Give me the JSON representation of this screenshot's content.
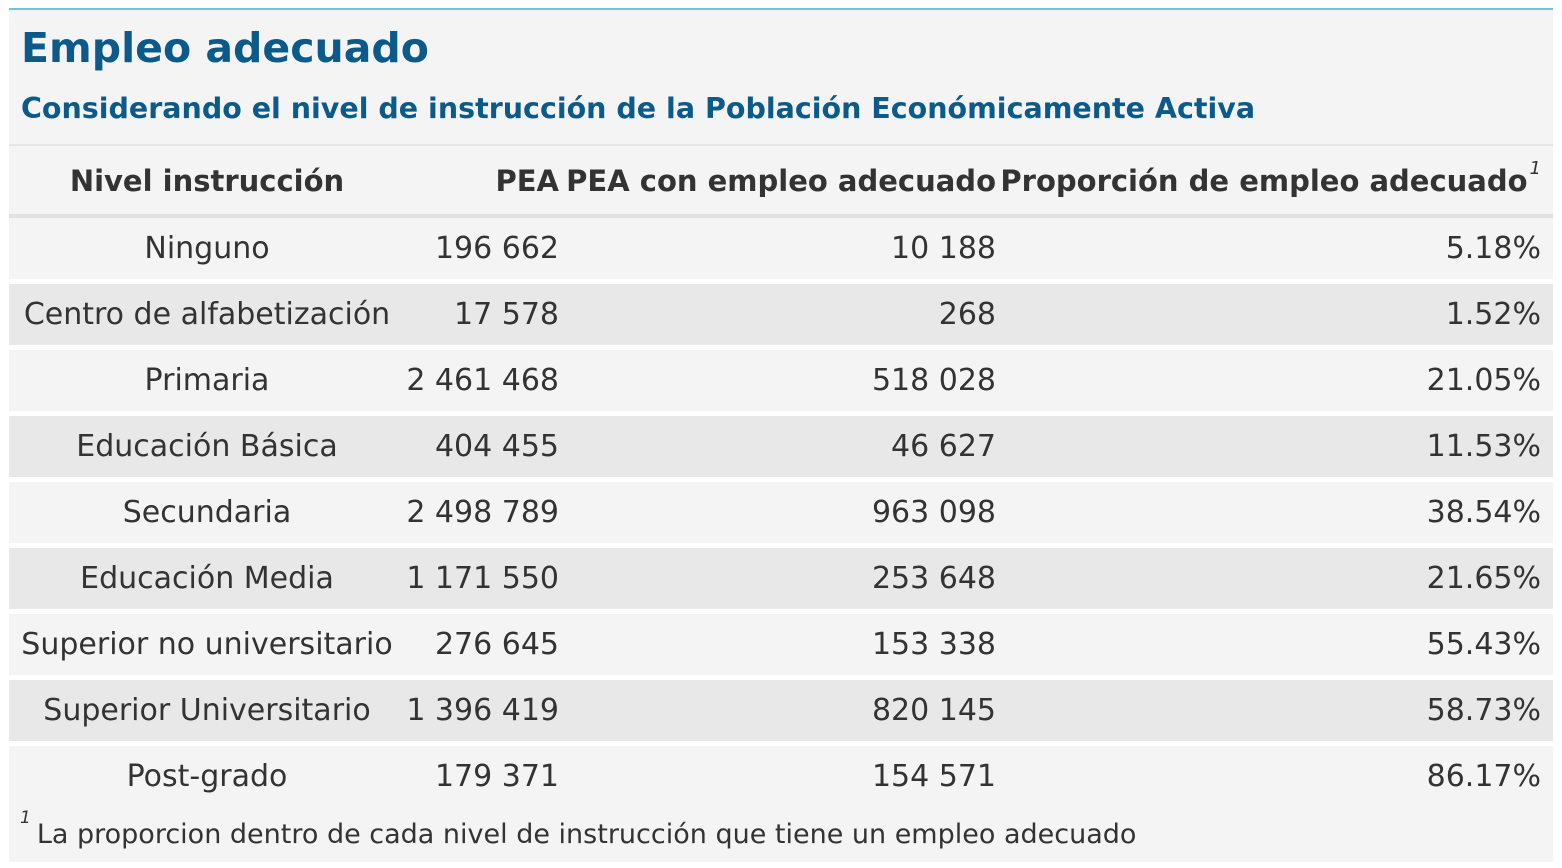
{
  "title": "Empleo adecuado",
  "subtitle": "Considerando el nivel de instrucción de la Población Económicamente Activa",
  "columns": [
    "Nivel instrucción",
    "PEA",
    "PEA con empleo adecuado",
    "Proporción de empleo adecuado"
  ],
  "footnote_marker": "1",
  "rows": [
    {
      "nivel": "Ninguno",
      "pea": "196 662",
      "adecuado": "10 188",
      "proporcion": "5.18%"
    },
    {
      "nivel": "Centro de alfabetización",
      "pea": "17 578",
      "adecuado": "268",
      "proporcion": "1.52%"
    },
    {
      "nivel": "Primaria",
      "pea": "2 461 468",
      "adecuado": "518 028",
      "proporcion": "21.05%"
    },
    {
      "nivel": "Educación Básica",
      "pea": "404 455",
      "adecuado": "46 627",
      "proporcion": "11.53%"
    },
    {
      "nivel": "Secundaria",
      "pea": "2 498 789",
      "adecuado": "963 098",
      "proporcion": "38.54%"
    },
    {
      "nivel": "Educación Media",
      "pea": "1 171 550",
      "adecuado": "253 648",
      "proporcion": "21.65%"
    },
    {
      "nivel": "Superior no universitario",
      "pea": "276 645",
      "adecuado": "153 338",
      "proporcion": "55.43%"
    },
    {
      "nivel": "Superior Universitario",
      "pea": "1 396 419",
      "adecuado": "820 145",
      "proporcion": "58.73%"
    },
    {
      "nivel": "Post-grado",
      "pea": "179 371",
      "adecuado": "154 571",
      "proporcion": "86.17%"
    }
  ],
  "footnote": "La proporcion dentro de cada nivel de instrucción que tiene un empleo adecuado",
  "colors": {
    "title": "#0b5a8a",
    "accent_line": "#6ec3dc",
    "stripe": "#e8e8e8",
    "background": "#f4f4f4"
  }
}
